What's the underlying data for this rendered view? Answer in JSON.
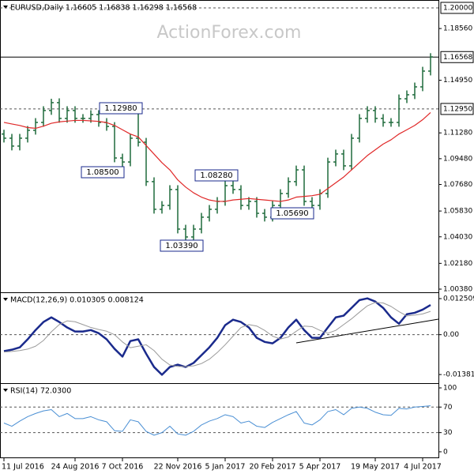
{
  "chart_data": [
    {
      "type": "candlestick",
      "title": "EURUSD,Daily  1.16605 1.16838 1.16298 1.16568",
      "watermark": "ActionForex.com",
      "categories": [
        "11 Jul 2016",
        null,
        null,
        null,
        null,
        null,
        null,
        null,
        null,
        "24 Aug 2016",
        null,
        null,
        null,
        null,
        null,
        "7 Oct 2016",
        null,
        null,
        null,
        null,
        null,
        null,
        "22 Nov 2016",
        null,
        null,
        null,
        null,
        null,
        "5 Jan 2017",
        null,
        null,
        null,
        null,
        null,
        "20 Feb 2017",
        null,
        null,
        null,
        null,
        null,
        "5 Apr 2017",
        null,
        null,
        null,
        null,
        null,
        null,
        "19 May 2017",
        null,
        null,
        null,
        null,
        null,
        "4 Jul 2017",
        null
      ],
      "open": [
        1.112,
        1.1091,
        1.1036,
        1.1091,
        1.1146,
        1.1201,
        1.1284,
        1.1339,
        1.1229,
        1.1284,
        1.1229,
        1.1229,
        1.1256,
        1.1201,
        1.1173,
        1.0953,
        1.0925,
        1.1091,
        1.1063,
        1.0788,
        1.0595,
        1.0622,
        1.0733,
        1.0457,
        1.0402,
        1.0457,
        1.054,
        1.0595,
        1.065,
        1.076,
        1.0733,
        1.0622,
        1.065,
        1.0567,
        1.054,
        1.0622,
        1.0705,
        1.0788,
        1.087,
        1.065,
        1.0622,
        1.0705,
        1.0925,
        1.0981,
        1.0898,
        1.1091,
        1.1229,
        1.1284,
        1.1229,
        1.1201,
        1.1201,
        1.1366,
        1.1394,
        1.1449,
        1.1559
      ],
      "high": [
        1.115,
        1.1121,
        1.1121,
        1.1176,
        1.1231,
        1.1314,
        1.1366,
        1.1369,
        1.1314,
        1.1314,
        1.1259,
        1.1286,
        1.1286,
        1.1231,
        1.1203,
        1.0983,
        1.1121,
        1.1298,
        1.1093,
        1.0818,
        1.0652,
        1.0763,
        1.0763,
        1.0487,
        1.0487,
        1.057,
        1.0625,
        1.068,
        1.0828,
        1.079,
        1.0763,
        1.068,
        1.068,
        1.0597,
        1.0652,
        1.0735,
        1.0818,
        1.09,
        1.09,
        1.068,
        1.0735,
        1.0955,
        1.1011,
        1.1011,
        1.1121,
        1.1259,
        1.1314,
        1.1314,
        1.1259,
        1.1231,
        1.1396,
        1.1424,
        1.1479,
        1.1589,
        1.1684
      ],
      "low": [
        1.1061,
        1.1006,
        1.1006,
        1.1061,
        1.1116,
        1.1171,
        1.1254,
        1.1199,
        1.1199,
        1.1199,
        1.1199,
        1.1199,
        1.1171,
        1.1143,
        1.0923,
        1.085,
        1.0895,
        1.1033,
        1.0758,
        1.0565,
        1.0565,
        1.0592,
        1.0427,
        1.0339,
        1.0372,
        1.0427,
        1.051,
        1.0565,
        1.062,
        1.0703,
        1.0592,
        1.0592,
        1.0537,
        1.051,
        1.051,
        1.0592,
        1.0675,
        1.0758,
        1.062,
        1.0592,
        1.0592,
        1.0675,
        1.0895,
        1.0868,
        1.0868,
        1.1061,
        1.1199,
        1.1199,
        1.1171,
        1.1171,
        1.1171,
        1.1336,
        1.1364,
        1.1419,
        1.1529
      ],
      "close": [
        1.1091,
        1.1036,
        1.1091,
        1.1146,
        1.1201,
        1.1284,
        1.1339,
        1.1229,
        1.1284,
        1.1229,
        1.1229,
        1.1256,
        1.1201,
        1.1173,
        1.0953,
        1.0925,
        1.1091,
        1.1063,
        1.0788,
        1.0595,
        1.0622,
        1.0733,
        1.0457,
        1.0402,
        1.0457,
        1.054,
        1.0595,
        1.065,
        1.076,
        1.0733,
        1.0622,
        1.065,
        1.0567,
        1.054,
        1.0622,
        1.0705,
        1.0788,
        1.087,
        1.065,
        1.0622,
        1.0705,
        1.0925,
        1.0981,
        1.0898,
        1.1091,
        1.1229,
        1.1284,
        1.1229,
        1.1201,
        1.1201,
        1.1366,
        1.1394,
        1.1449,
        1.1559,
        1.1658
      ],
      "color": "#1f6b3c",
      "overlays": [
        {
          "color": "#e02828",
          "values": [
            1.1201,
            1.119,
            1.118,
            1.1165,
            1.116,
            1.1175,
            1.1195,
            1.1205,
            1.121,
            1.1215,
            1.1215,
            1.1212,
            1.1208,
            1.12,
            1.118,
            1.115,
            1.112,
            1.11,
            1.104,
            1.098,
            1.092,
            1.087,
            1.08,
            1.075,
            1.071,
            1.068,
            1.066,
            1.065,
            1.065,
            1.066,
            1.0665,
            1.067,
            1.0665,
            1.066,
            1.0655,
            1.065,
            1.066,
            1.068,
            1.0685,
            1.069,
            1.07,
            1.074,
            1.078,
            1.082,
            1.087,
            1.092,
            1.097,
            1.101,
            1.105,
            1.108,
            1.112,
            1.115,
            1.118,
            1.122,
            1.127
          ]
        }
      ],
      "ylim": [
        1.0016,
        1.2055
      ],
      "yticks": [
        {
          "value": 1.0038,
          "label": "1.00380"
        },
        {
          "value": 1.0218,
          "label": "1.02180"
        },
        {
          "value": 1.0403,
          "label": "1.04030"
        },
        {
          "value": 1.0583,
          "label": "1.05830"
        },
        {
          "value": 1.0768,
          "label": "1.07680"
        },
        {
          "value": 1.0948,
          "label": "1.09480"
        },
        {
          "value": 1.1128,
          "label": "1.11280"
        },
        {
          "value": 1.1495,
          "label": "1.14950"
        },
        {
          "value": 1.1856,
          "label": "1.18560"
        }
      ],
      "levels": [
        {
          "value": 1.2,
          "label": "1.20000",
          "style": "dashed"
        },
        {
          "value": 1.1295,
          "label": "1.12950",
          "style": "dashed"
        },
        {
          "value": 1.16568,
          "label": "1.16568",
          "style": "solid"
        }
      ],
      "annotations": [
        "1.12980",
        "1.08500",
        "1.08280",
        "1.05690",
        "1.03390"
      ]
    },
    {
      "type": "line",
      "title": "MACD(12,26,9) 0.010305 0.008124",
      "series": [
        {
          "color": "#1a2a8c",
          "width": 2.5,
          "values": [
            -0.0057,
            -0.0052,
            -0.0044,
            -0.0016,
            0.0016,
            0.0044,
            0.006,
            0.0044,
            0.0025,
            0.0011,
            0.0011,
            0.0016,
            0.0005,
            -0.0016,
            -0.0049,
            -0.0076,
            -0.0022,
            -0.0016,
            -0.0066,
            -0.0112,
            -0.0139,
            -0.0112,
            -0.0104,
            -0.0112,
            -0.0098,
            -0.0071,
            -0.0044,
            -0.0011,
            0.0033,
            0.0052,
            0.0044,
            0.0025,
            -0.0011,
            -0.0025,
            -0.003,
            -0.0011,
            0.0025,
            0.0052,
            0.0016,
            -0.0011,
            -0.0011,
            0.0025,
            0.006,
            0.0066,
            0.0093,
            0.012,
            0.0126,
            0.0115,
            0.0093,
            0.006,
            0.0038,
            0.0071,
            0.0076,
            0.0087,
            0.0103
          ]
        },
        {
          "color": "#9a9a9a",
          "width": 1,
          "values": [
            -0.006,
            -0.0058,
            -0.0055,
            -0.005,
            -0.004,
            -0.002,
            0.001,
            0.0035,
            0.0048,
            0.0045,
            0.0035,
            0.0025,
            0.0018,
            0.0012,
            0.0,
            -0.0025,
            -0.0045,
            -0.004,
            -0.0035,
            -0.0055,
            -0.0085,
            -0.0105,
            -0.011,
            -0.011,
            -0.0108,
            -0.01,
            -0.0085,
            -0.0062,
            -0.0035,
            -0.0005,
            0.0025,
            0.0035,
            0.003,
            0.0015,
            -0.0005,
            -0.0015,
            -0.0008,
            0.0012,
            0.003,
            0.0028,
            0.0015,
            0.0005,
            0.0015,
            0.0035,
            0.0055,
            0.0078,
            0.01,
            0.0112,
            0.011,
            0.0098,
            0.008,
            0.0065,
            0.0068,
            0.0072,
            0.0081
          ]
        }
      ],
      "ylim": [
        -0.0168,
        0.0147
      ],
      "yticks": [
        -0.013813,
        {
          "value": 0,
          "label": "0.00"
        },
        0.012509
      ],
      "levels": [
        0
      ]
    },
    {
      "type": "line",
      "title": "RSI(14) 72.0300",
      "series": [
        {
          "color": "#4a8fd4",
          "width": 1,
          "values": [
            45,
            40,
            48,
            55,
            60,
            64,
            66,
            55,
            60,
            52,
            52,
            55,
            50,
            47,
            33,
            32,
            50,
            47,
            32,
            26,
            30,
            40,
            28,
            26,
            32,
            42,
            48,
            52,
            58,
            55,
            45,
            48,
            40,
            38,
            46,
            52,
            58,
            63,
            45,
            42,
            50,
            63,
            66,
            58,
            68,
            70,
            68,
            62,
            58,
            57,
            68,
            67,
            70,
            71,
            72.03
          ]
        }
      ],
      "ylim": [
        -10,
        107.4
      ],
      "yticks": [
        0,
        30,
        70,
        100
      ],
      "levels": [
        30,
        70
      ]
    }
  ]
}
